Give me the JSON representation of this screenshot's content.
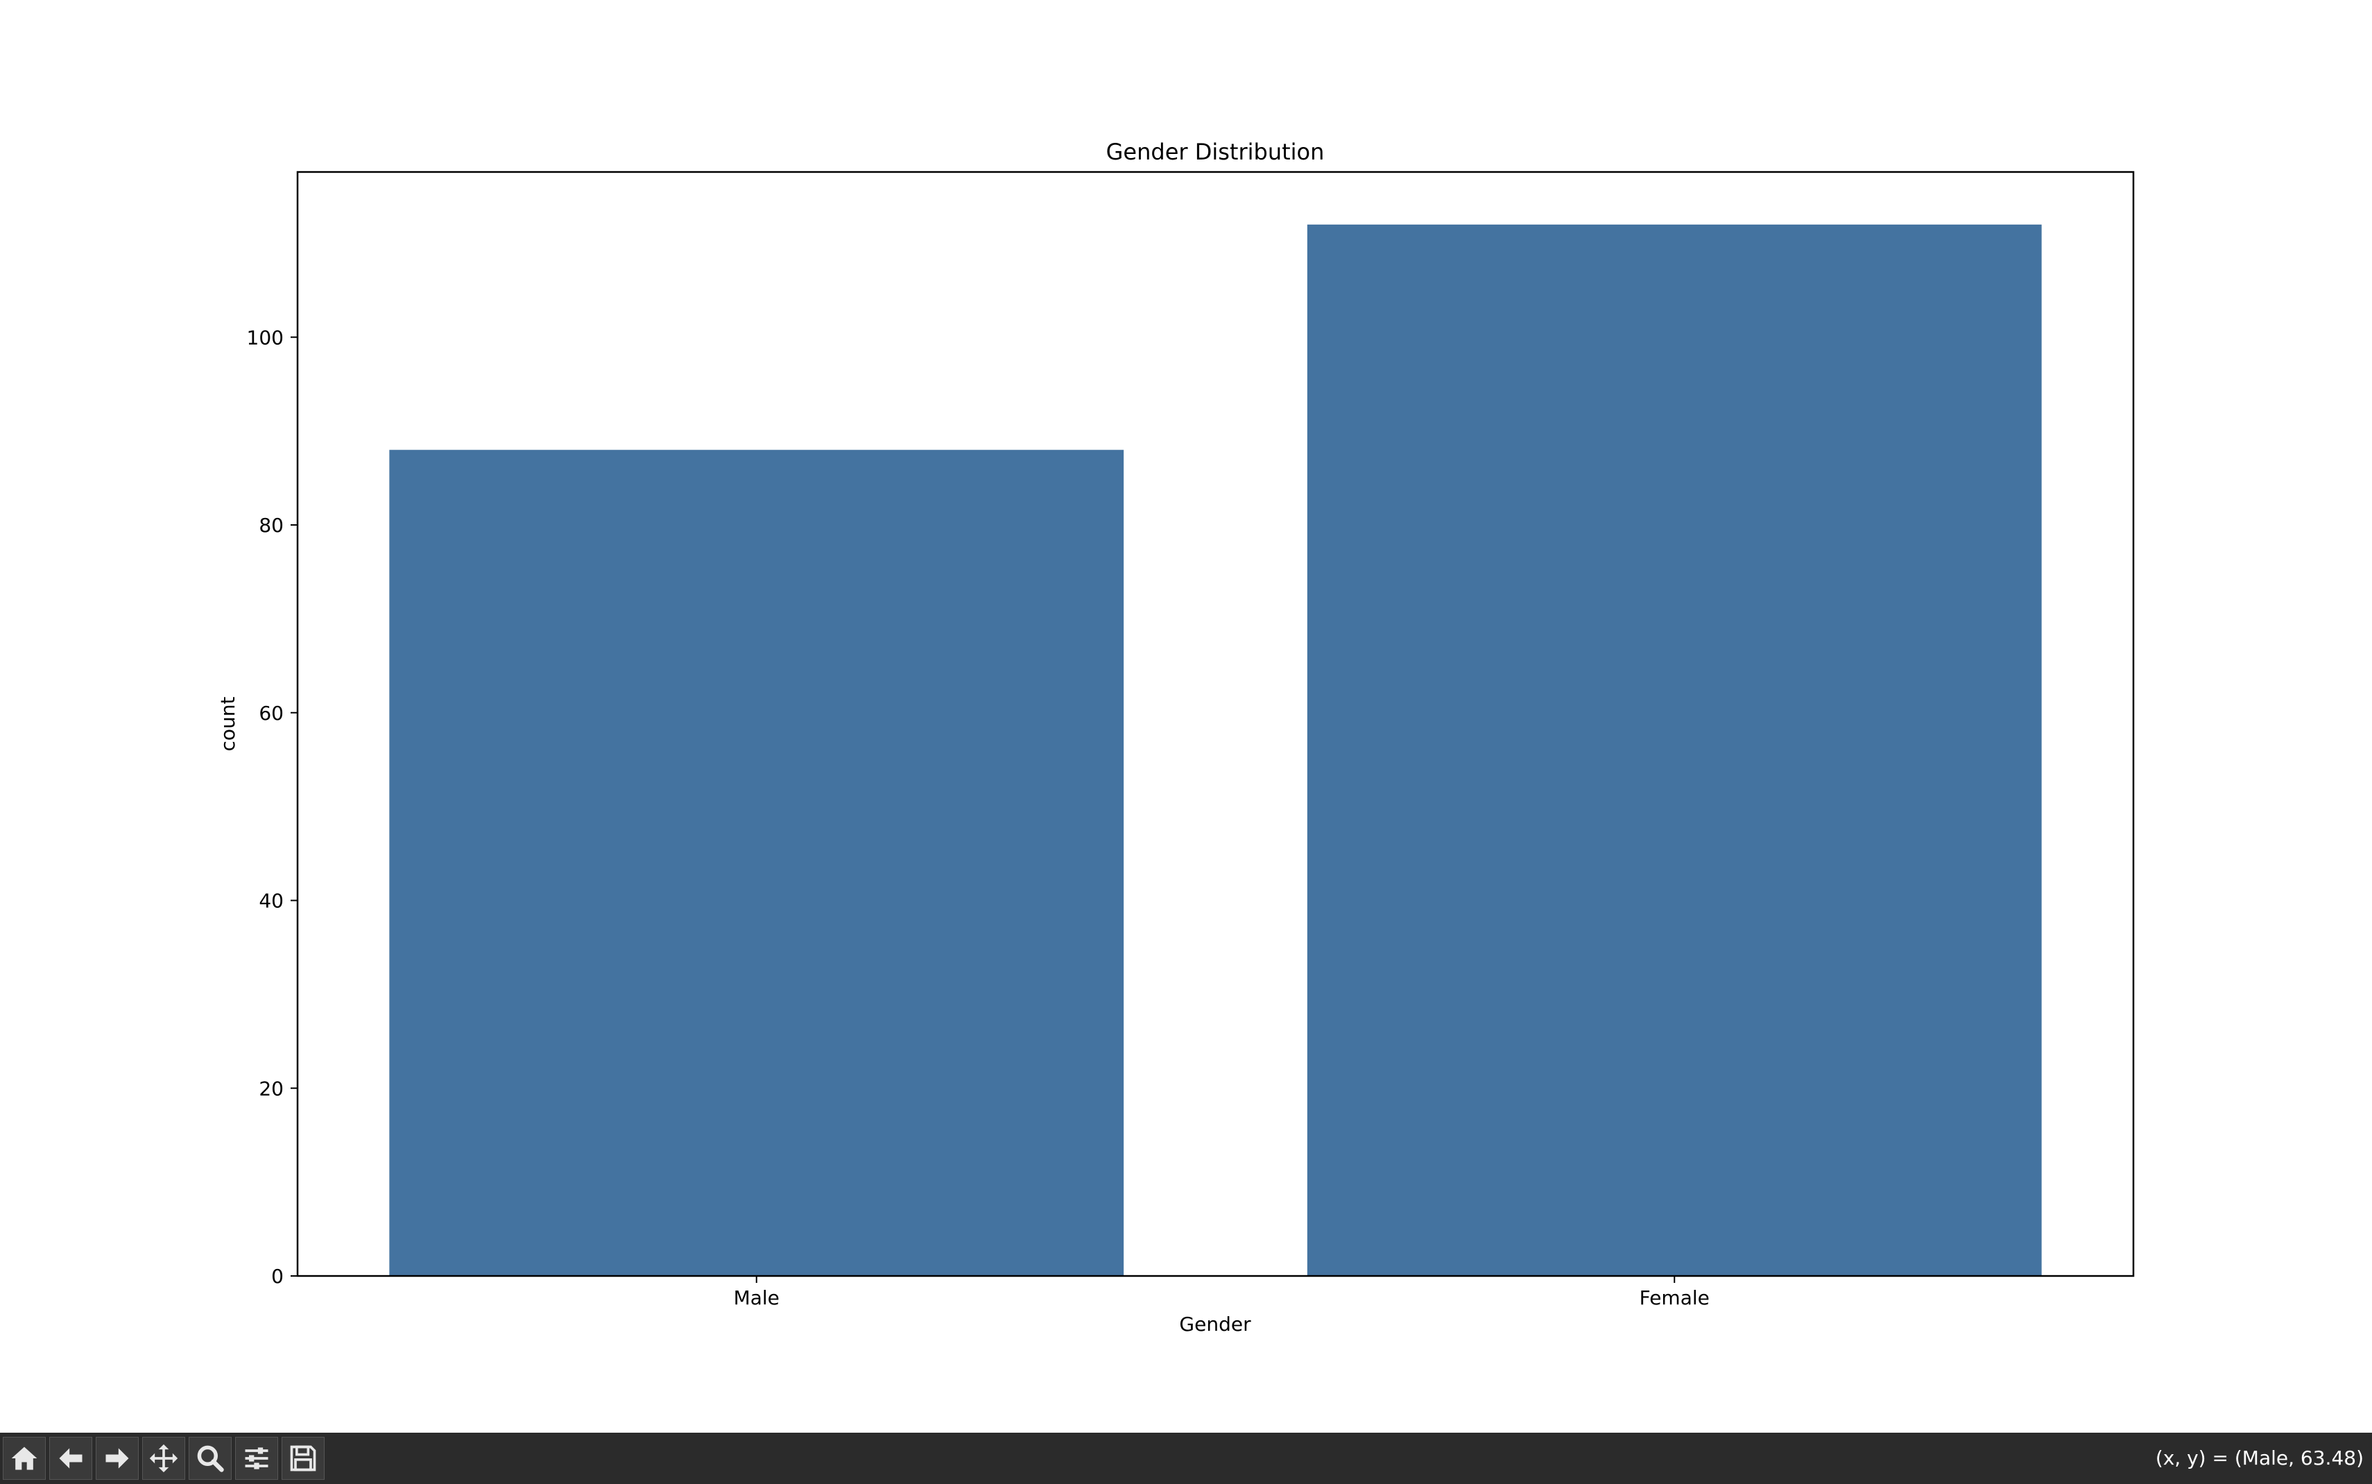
{
  "chart_data": {
    "type": "bar",
    "title": "Gender Distribution",
    "xlabel": "Gender",
    "ylabel": "count",
    "categories": [
      "Male",
      "Female"
    ],
    "values": [
      88,
      112
    ],
    "ylim": [
      0,
      117.6
    ],
    "yticks": [
      0,
      20,
      40,
      60,
      80,
      100
    ],
    "bar_color": "#4473a0",
    "grid": false
  },
  "toolbar": {
    "buttons": [
      {
        "name": "home",
        "icon": "home-icon"
      },
      {
        "name": "back",
        "icon": "arrow-left-icon"
      },
      {
        "name": "forward",
        "icon": "arrow-right-icon"
      },
      {
        "name": "pan",
        "icon": "move-icon"
      },
      {
        "name": "zoom",
        "icon": "magnifier-icon"
      },
      {
        "name": "configure-subplots",
        "icon": "sliders-icon"
      },
      {
        "name": "save",
        "icon": "floppy-disk-icon"
      }
    ],
    "coordinates": "(x, y) = (Male, 63.48)",
    "background": "#2b2b2b"
  }
}
